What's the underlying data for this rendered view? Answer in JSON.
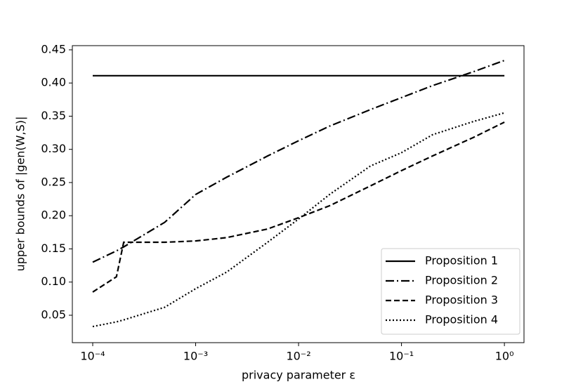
{
  "chart_data": {
    "type": "line",
    "xlabel": "privacy parameter ε",
    "ylabel": "upper bounds of |gen(W,S)|",
    "x": [
      0.0001,
      0.00017,
      0.0002,
      0.0005,
      0.001,
      0.002,
      0.005,
      0.01,
      0.02,
      0.05,
      0.1,
      0.2,
      0.5,
      1
    ],
    "series": [
      {
        "name": "Proposition 1",
        "color": "#000000",
        "linestyle": "solid",
        "values": [
          0.411,
          0.411,
          0.411,
          0.411,
          0.411,
          0.411,
          0.411,
          0.411,
          0.411,
          0.411,
          0.411,
          0.411,
          0.411,
          0.411
        ]
      },
      {
        "name": "Proposition 2",
        "color": "#000000",
        "linestyle": "dashdot",
        "values": [
          0.13,
          0.147,
          0.153,
          0.19,
          0.232,
          0.258,
          0.29,
          0.313,
          0.335,
          0.36,
          0.378,
          0.396,
          0.417,
          0.434
        ]
      },
      {
        "name": "Proposition 3",
        "color": "#000000",
        "linestyle": "dashed",
        "values": [
          0.085,
          0.108,
          0.16,
          0.16,
          0.162,
          0.167,
          0.18,
          0.197,
          0.215,
          0.245,
          0.268,
          0.29,
          0.318,
          0.341
        ]
      },
      {
        "name": "Proposition 4",
        "color": "#000000",
        "linestyle": "dotted",
        "values": [
          0.033,
          0.04,
          0.043,
          0.062,
          0.09,
          0.115,
          0.16,
          0.195,
          0.232,
          0.275,
          0.295,
          0.322,
          0.342,
          0.355
        ]
      }
    ],
    "xscale": "log",
    "xlim": [
      6.34e-05,
      1.55
    ],
    "xticks": [
      {
        "value": 0.0001,
        "label": "10⁻⁴"
      },
      {
        "value": 0.001,
        "label": "10⁻³"
      },
      {
        "value": 0.01,
        "label": "10⁻²"
      },
      {
        "value": 0.1,
        "label": "10⁻¹"
      },
      {
        "value": 1,
        "label": "10⁰"
      }
    ],
    "ylim": [
      0.0087,
      0.4563
    ],
    "yticks": [
      0.05,
      {
        "value": 0.1,
        "label": "0.10"
      },
      0.15,
      {
        "value": 0.2,
        "label": "0.20"
      },
      0.25,
      {
        "value": 0.3,
        "label": "0.30"
      },
      0.35,
      {
        "value": 0.4,
        "label": "0.40"
      },
      0.45
    ],
    "legend": "lower right"
  }
}
